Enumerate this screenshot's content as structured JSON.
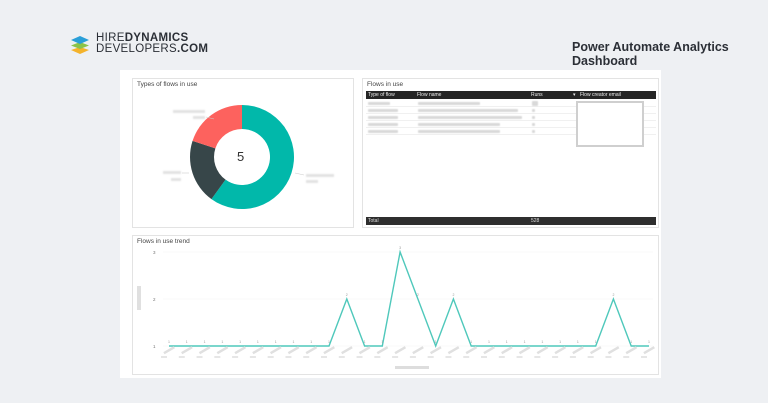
{
  "brand": {
    "line1_regular": "HIRE",
    "line1_bold": "DYNAMICS",
    "line2_regular": "DEVELOPERS",
    "line2_bold": ".COM"
  },
  "header": {
    "title_line1": "Power Automate Analytics",
    "title_line2": "Dashboard"
  },
  "donut": {
    "title": "Types of flows in use",
    "center_value": "5",
    "segments": [
      {
        "color": "#01b8aa",
        "fraction": 0.6
      },
      {
        "color": "#374649",
        "fraction": 0.2
      },
      {
        "color": "#fd625e",
        "fraction": 0.2
      }
    ]
  },
  "table": {
    "title": "Flows in use",
    "columns": [
      "Type of flow",
      "Flow name",
      "Runs",
      "Flow creator email"
    ],
    "sort_indicator": "▾",
    "row_count": 5,
    "total_label": "Total",
    "total_runs": "528"
  },
  "trend": {
    "title": "Flows in use trend",
    "line_color": "#4fc8bb"
  },
  "chart_data": {
    "type": "line",
    "title": "Flows in use trend",
    "xlabel": "",
    "ylabel": "",
    "ylim": [
      1,
      3
    ],
    "y_ticks": [
      "1",
      "2",
      "3"
    ],
    "values": [
      1,
      1,
      1,
      1,
      1,
      1,
      1,
      1,
      1,
      1,
      2,
      1,
      1,
      3,
      2,
      1,
      2,
      1,
      1,
      1,
      1,
      1,
      1,
      1,
      1,
      2,
      1,
      1
    ]
  }
}
